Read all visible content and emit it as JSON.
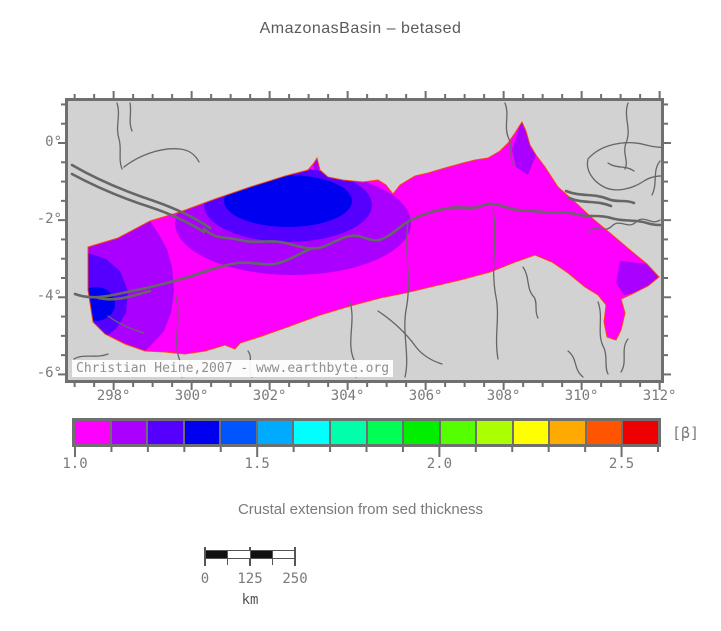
{
  "title": "AmazonasBasin – betased",
  "subtitle": "Crustal extension from sed thickness",
  "map": {
    "watermark": "Christian Heine,2007 - www.earthbyte.org",
    "x_axis": {
      "tick_labels": [
        "298°",
        "300°",
        "302°",
        "304°",
        "306°",
        "308°",
        "310°",
        "312°"
      ]
    },
    "y_axis": {
      "tick_labels": [
        "0°",
        "-2°",
        "-4°",
        "-6°"
      ]
    },
    "zone_legend": {
      "beta_1.0-1.1": "#ff00ff",
      "beta_1.1-1.2": "#aa00ff",
      "beta_1.2-1.3": "#5500ff",
      "beta_1.3-1.4": "#0000f0"
    }
  },
  "colorbar": {
    "unit_label": "[β]",
    "tick_labels": [
      "1.0",
      "1.5",
      "2.0",
      "2.5"
    ],
    "tick_values": [
      1.0,
      1.5,
      2.0,
      2.5
    ],
    "range_min": 1.0,
    "range_max": 2.6,
    "segment_colors": [
      "#ff00ff",
      "#aa00ff",
      "#5500ff",
      "#0000f0",
      "#0055ff",
      "#00aaff",
      "#00ffff",
      "#00ffaa",
      "#00ff55",
      "#00ee00",
      "#55ff00",
      "#aaff00",
      "#ffff00",
      "#ffaa00",
      "#ff5500",
      "#ee0000"
    ]
  },
  "scalebar": {
    "tick_labels": [
      "0",
      "125",
      "250"
    ],
    "unit_label": "km"
  },
  "theme": {
    "magenta": "#ff00ff",
    "purple": "#aa00ff",
    "violet": "#5500ff",
    "blue": "#0000f0",
    "frame": "#6f6f6f",
    "river": "#666666",
    "outline": "#ff4000",
    "mapbg": "#d2d2d2",
    "text": "#7a7a7a",
    "title_text": "#5a5a5a"
  }
}
